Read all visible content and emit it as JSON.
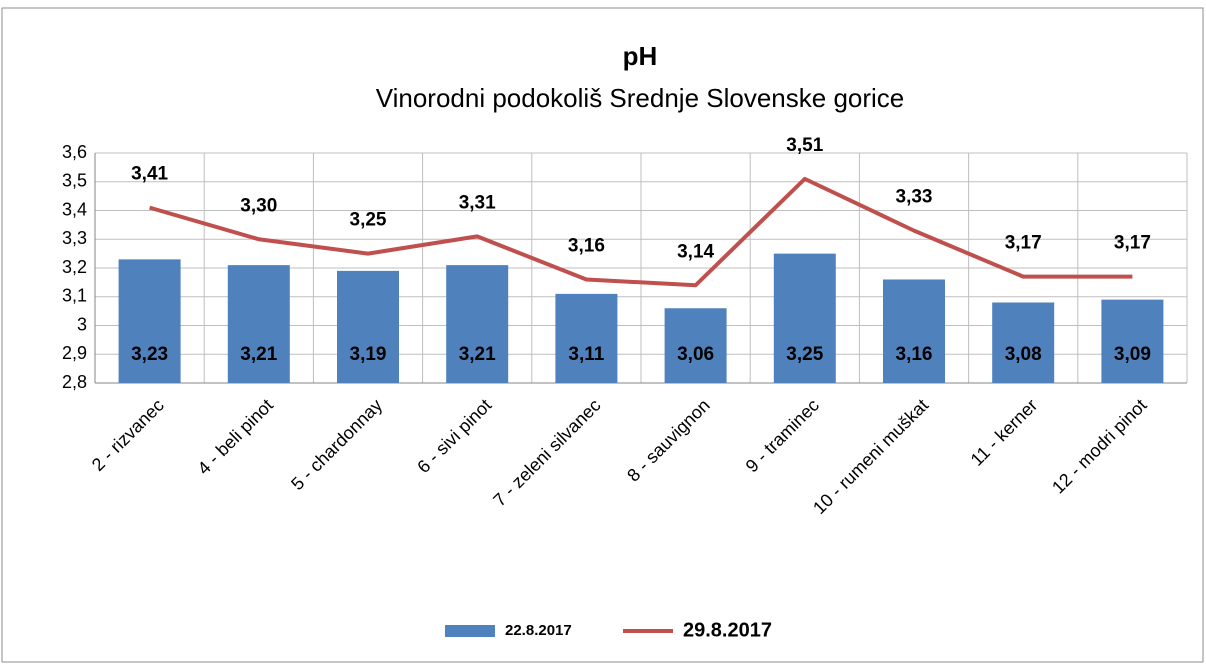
{
  "chart_data": {
    "type": "combo",
    "title": "pH",
    "subtitle": "Vinorodni podokoliš Srednje Slovenske gorice",
    "categories": [
      "2 - rizvanec",
      "4 - beli pinot",
      "5 - chardonnay",
      "6 - sivi pinot",
      "7 - zeleni silvanec",
      "8 - sauvignon",
      "9 - traminec",
      "10 - rumeni muškat",
      "11 - kerner",
      "12 - modri pinot"
    ],
    "series": [
      {
        "name": "22.8.2017",
        "type": "bar",
        "color": "#4f81bd",
        "values": [
          3.23,
          3.21,
          3.19,
          3.21,
          3.11,
          3.06,
          3.25,
          3.16,
          3.08,
          3.09
        ],
        "value_labels": [
          "3,23",
          "3,21",
          "3,19",
          "3,21",
          "3,11",
          "3,06",
          "3,25",
          "3,16",
          "3,08",
          "3,09"
        ]
      },
      {
        "name": "29.8.2017",
        "type": "line",
        "color": "#c0504d",
        "values": [
          3.41,
          3.3,
          3.25,
          3.31,
          3.16,
          3.14,
          3.51,
          3.33,
          3.17,
          3.17
        ],
        "value_labels": [
          "3,41",
          "3,30",
          "3,25",
          "3,31",
          "3,16",
          "3,14",
          "3,51",
          "3,33",
          "3,17",
          "3,17"
        ]
      }
    ],
    "ylim": [
      2.8,
      3.6
    ],
    "yticks": [
      {
        "value": 2.8,
        "label": "2,8"
      },
      {
        "value": 2.9,
        "label": "2,9"
      },
      3,
      {
        "value": 3.1,
        "label": "3,1"
      },
      {
        "value": 3.2,
        "label": "3,2"
      },
      {
        "value": 3.3,
        "label": "3,3"
      },
      {
        "value": 3.4,
        "label": "3,4"
      },
      {
        "value": 3.5,
        "label": "3,5"
      },
      {
        "value": 3.6,
        "label": "3,6"
      }
    ],
    "grid": true,
    "legend": "bottom"
  }
}
